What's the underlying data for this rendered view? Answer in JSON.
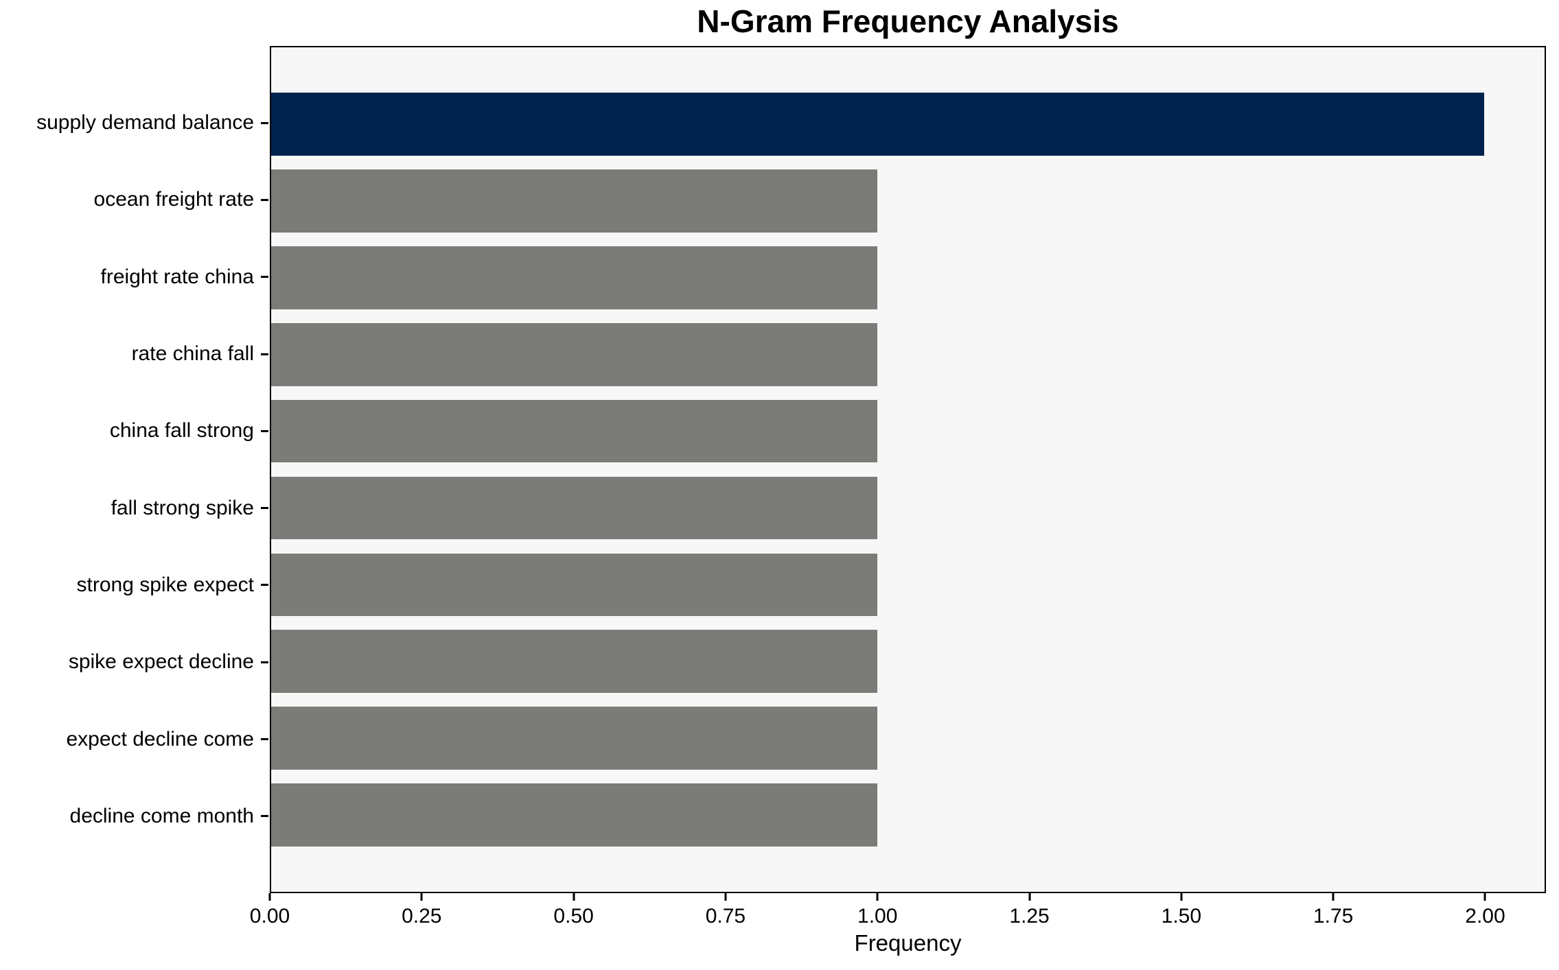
{
  "chart_data": {
    "type": "bar",
    "orientation": "horizontal",
    "title": "N-Gram Frequency Analysis",
    "xlabel": "Frequency",
    "ylabel": "",
    "categories": [
      "supply demand balance",
      "ocean freight rate",
      "freight rate china",
      "rate china fall",
      "china fall strong",
      "fall strong spike",
      "strong spike expect",
      "spike expect decline",
      "expect decline come",
      "decline come month"
    ],
    "values": [
      2,
      1,
      1,
      1,
      1,
      1,
      1,
      1,
      1,
      1
    ],
    "bar_colors": [
      "#00234e",
      "#7b7b78",
      "#7b7b78",
      "#7b7b78",
      "#7b7b78",
      "#7b7b78",
      "#7b7b78",
      "#7b7b78",
      "#7b7b78",
      "#7b7b78"
    ],
    "x_tick_labels": [
      "0.00",
      "0.25",
      "0.50",
      "0.75",
      "1.00",
      "1.25",
      "1.50",
      "1.75",
      "2.00"
    ],
    "x_tick_values": [
      0,
      0.25,
      0.5,
      0.75,
      1.0,
      1.25,
      1.5,
      1.75,
      2.0
    ],
    "xlim": [
      0,
      2.1
    ],
    "grid": false,
    "legend": "none",
    "colors": {
      "highlight_bar": "#00234e",
      "default_bar": "#7b7b78",
      "plot_background": "#f7f7f7",
      "page_background": "#ffffff",
      "spine": "#000000",
      "text": "#000000"
    }
  }
}
